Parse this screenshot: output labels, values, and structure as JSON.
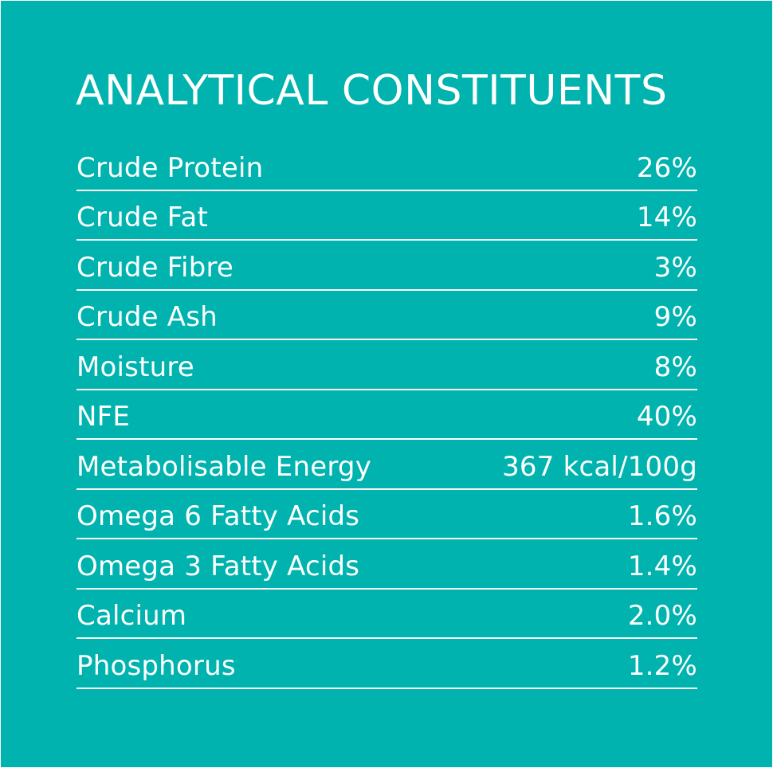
{
  "title": "ANALYTICAL CONSTITUENTS",
  "colors": {
    "background": "#00b3ae",
    "text": "#ffffff"
  },
  "constituents": [
    {
      "label": "Crude Protein",
      "value": "26%"
    },
    {
      "label": "Crude Fat",
      "value": "14%"
    },
    {
      "label": "Crude Fibre",
      "value": "3%"
    },
    {
      "label": "Crude Ash",
      "value": "9%"
    },
    {
      "label": "Moisture",
      "value": "8%"
    },
    {
      "label": "NFE",
      "value": "40%"
    },
    {
      "label": "Metabolisable Energy",
      "value": "367 kcal/100g"
    },
    {
      "label": "Omega 6 Fatty Acids",
      "value": "1.6%"
    },
    {
      "label": "Omega 3 Fatty Acids",
      "value": "1.4%"
    },
    {
      "label": "Calcium",
      "value": "2.0%"
    },
    {
      "label": "Phosphorus",
      "value": "1.2%"
    }
  ]
}
